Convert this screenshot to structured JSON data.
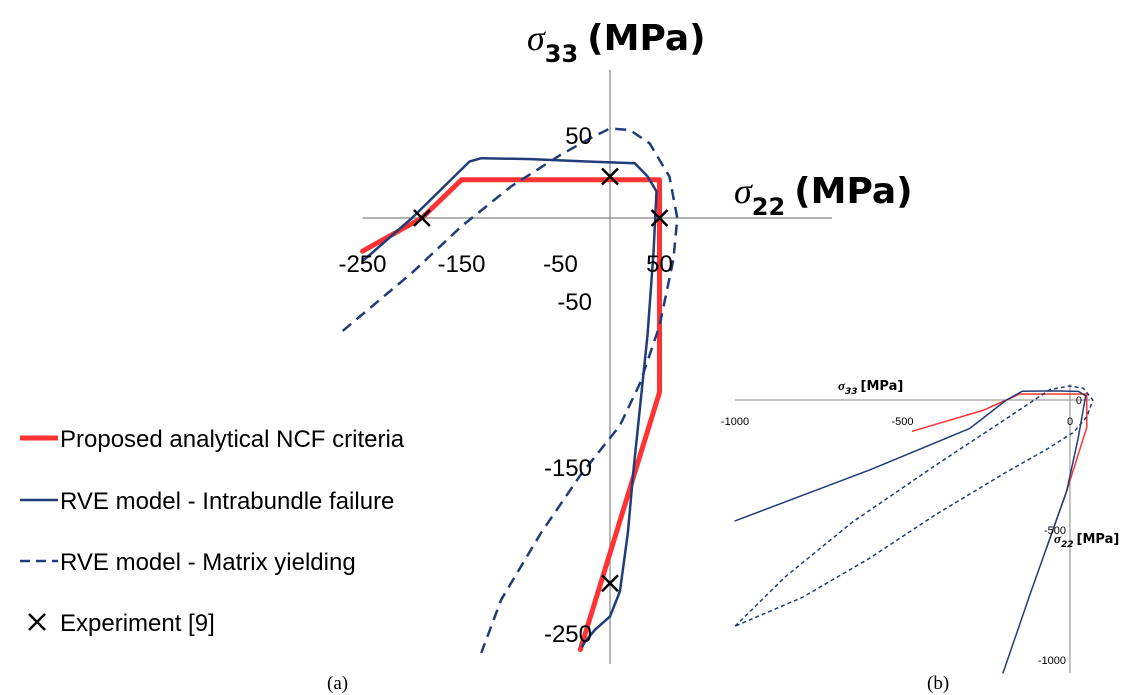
{
  "chart_data": [
    {
      "panel": "a",
      "caption": "(a)",
      "type": "line",
      "x_axis": {
        "symbol": "σ",
        "subscript": "22",
        "unit": "(MPa)",
        "ticks": [
          -250,
          -150,
          -50,
          50
        ],
        "range": [
          -270,
          70
        ]
      },
      "y_axis": {
        "symbol": "σ",
        "subscript": "33",
        "unit": "(MPa)",
        "ticks": [
          50,
          -50,
          -150,
          -250
        ],
        "range": [
          -262,
          78
        ]
      },
      "legend_position": "bottom-left",
      "series": [
        {
          "name": "Proposed analytical NCF criteria",
          "color": "#ff3333",
          "style": "solid-thick",
          "points": [
            [
              -250,
              -20
            ],
            [
              -190,
              0
            ],
            [
              -150,
              23
            ],
            [
              50,
              23
            ],
            [
              50,
              -105
            ],
            [
              -30,
              -260
            ]
          ]
        },
        {
          "name": "RVE model - Intrabundle failure",
          "color": "#1f3d7a",
          "style": "solid",
          "points": [
            [
              -250,
              -26
            ],
            [
              -200,
              0
            ],
            [
              -142,
              34
            ],
            [
              -130,
              36
            ],
            [
              -80,
              35.5
            ],
            [
              -20,
              34
            ],
            [
              25,
              33
            ],
            [
              38,
              25
            ],
            [
              47,
              16
            ],
            [
              44,
              -20
            ],
            [
              38,
              -70
            ],
            [
              24,
              -150
            ],
            [
              18,
              -190
            ],
            [
              10,
              -225
            ],
            [
              0,
              -240
            ],
            [
              -15,
              -248
            ],
            [
              -25,
              -255
            ],
            [
              -28,
              -258
            ]
          ]
        },
        {
          "name": "RVE model - Matrix yielding",
          "color": "#1f3d7a",
          "style": "dashed",
          "points": [
            [
              -270,
              -68
            ],
            [
              -200,
              -33
            ],
            [
              -150,
              -5
            ],
            [
              -100,
              19
            ],
            [
              -50,
              38
            ],
            [
              -20,
              48
            ],
            [
              0,
              54
            ],
            [
              20,
              53
            ],
            [
              40,
              45
            ],
            [
              60,
              25
            ],
            [
              68,
              0
            ],
            [
              64,
              -25
            ],
            [
              50,
              -65
            ],
            [
              30,
              -100
            ],
            [
              10,
              -125
            ],
            [
              -30,
              -155
            ],
            [
              -70,
              -190
            ],
            [
              -110,
              -230
            ],
            [
              -130,
              -262
            ]
          ]
        },
        {
          "name": "Experiment [9]",
          "color": "#000000",
          "style": "markers-x",
          "points": [
            [
              -190,
              0
            ],
            [
              0,
              25
            ],
            [
              50,
              0
            ],
            [
              0,
              -220
            ]
          ]
        }
      ]
    },
    {
      "panel": "b",
      "caption": "(b)",
      "type": "line",
      "x_axis": {
        "symbol": "σ",
        "subscript": "33",
        "unit": "[MPa]",
        "ticks": [
          -1000,
          -500,
          0
        ],
        "range": [
          -1000,
          50
        ]
      },
      "y_axis": {
        "symbol": "σ",
        "subscript": "22",
        "unit": "[MPa]",
        "ticks": [
          0,
          -500,
          -1000
        ],
        "range": [
          -1050,
          50
        ]
      },
      "series": [
        {
          "name": "",
          "color": "#ff3333",
          "style": "solid",
          "points": [
            [
              -470,
              -120
            ],
            [
              -260,
              -40
            ],
            [
              -150,
              23
            ],
            [
              50,
              23
            ],
            [
              50,
              -105
            ],
            [
              -10,
              -350
            ],
            [
              -70,
              -570
            ]
          ]
        },
        {
          "name": "",
          "color": "#1f3d7a",
          "style": "solid",
          "points": [
            [
              -1000,
              -465
            ],
            [
              -600,
              -270
            ],
            [
              -300,
              -110
            ],
            [
              -190,
              0
            ],
            [
              -142,
              34
            ],
            [
              -50,
              35
            ],
            [
              25,
              33
            ],
            [
              47,
              16
            ],
            [
              24,
              -150
            ],
            [
              -10,
              -350
            ],
            [
              -120,
              -750
            ],
            [
              -200,
              -1050
            ]
          ]
        },
        {
          "name": "",
          "color": "#1f3d7a",
          "style": "dashed",
          "points": [
            [
              -1000,
              -870
            ],
            [
              -850,
              -680
            ],
            [
              -650,
              -470
            ],
            [
              -400,
              -250
            ],
            [
              -200,
              -80
            ],
            [
              -60,
              40
            ],
            [
              0,
              54
            ],
            [
              40,
              45
            ],
            [
              68,
              0
            ],
            [
              50,
              -65
            ],
            [
              10,
              -125
            ],
            [
              -70,
              -190
            ],
            [
              -200,
              -285
            ],
            [
              -400,
              -440
            ],
            [
              -600,
              -610
            ],
            [
              -800,
              -760
            ],
            [
              -1000,
              -870
            ]
          ]
        }
      ]
    }
  ],
  "colors": {
    "axis": "#868686",
    "text": "#000000"
  }
}
